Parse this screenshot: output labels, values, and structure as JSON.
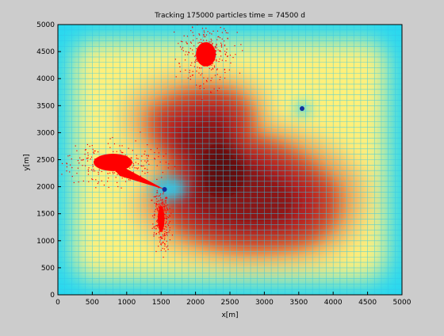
{
  "chart_data": {
    "type": "heatmap",
    "title": "Tracking 175000 particles time = 74500 d",
    "xlabel": "x[m]",
    "ylabel": "y[m]",
    "xlim": [
      0,
      5000
    ],
    "ylim": [
      0,
      5000
    ],
    "xticks": [
      0,
      500,
      1000,
      1500,
      2000,
      2500,
      3000,
      3500,
      4000,
      4500,
      5000
    ],
    "yticks": [
      0,
      500,
      1000,
      1500,
      2000,
      2500,
      3000,
      3500,
      4000,
      4500,
      5000
    ],
    "grid_spacing": 100,
    "grid": true,
    "colormap": [
      "#28d8f0",
      "#fff07a",
      "#f0a050",
      "#b82020",
      "#601010"
    ],
    "particle_color": "#ff0000",
    "field": {
      "description": "contour field (dark red = high, cyan = low)",
      "wells": [
        {
          "x": 1550,
          "y": 1950
        },
        {
          "x": 3560,
          "y": 3450
        }
      ]
    },
    "particle_clouds": [
      {
        "x": 2150,
        "y": 4450,
        "spread_x": 180,
        "spread_y": 280
      },
      {
        "x": 800,
        "y": 2450,
        "spread_x": 350,
        "spread_y": 200
      },
      {
        "x": 1500,
        "y": 1400,
        "spread_x": 60,
        "spread_y": 300
      }
    ],
    "particles": 175000,
    "time": 74500,
    "time_unit": "d"
  }
}
